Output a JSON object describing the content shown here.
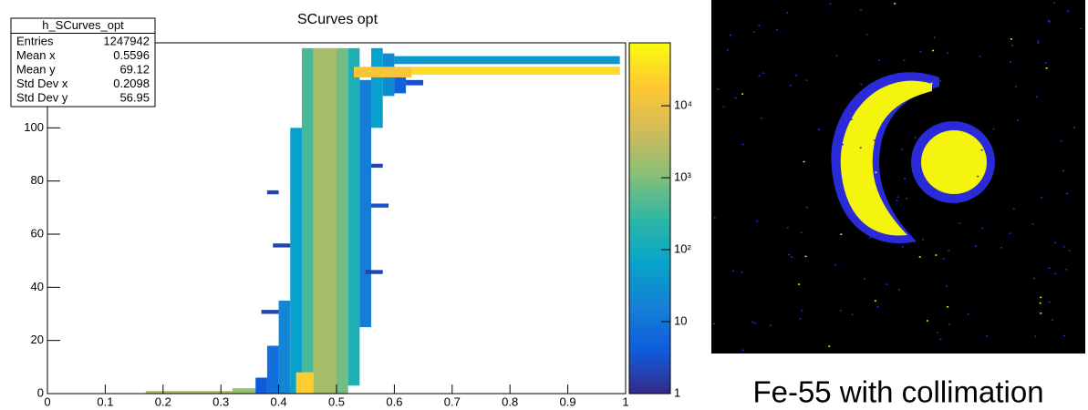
{
  "chart_data": {
    "type": "heatmap2d",
    "title": "SCurves opt",
    "xlim": [
      0,
      1
    ],
    "xticks": [
      0,
      0.1,
      0.2,
      0.3,
      0.4,
      0.5,
      0.6,
      0.7,
      0.8,
      0.9,
      1
    ],
    "ylim": [
      0,
      132
    ],
    "yticks": [
      0,
      20,
      40,
      60,
      80,
      100
    ],
    "zlim": [
      1,
      75000
    ],
    "zlog": true,
    "zticks": [
      1,
      10,
      {
        "value": 100,
        "label": "10²"
      },
      {
        "value": 1000,
        "label": "10³"
      },
      {
        "value": 10000,
        "label": "10⁴"
      }
    ],
    "palette": [
      "#352a87",
      "#0f5cdd",
      "#1481d6",
      "#06a4ca",
      "#2eb7a4",
      "#87bf77",
      "#d1bb59",
      "#fec832",
      "#f9fb0e"
    ],
    "cells": [
      {
        "x": [
          0.17,
          0.32
        ],
        "y": [
          0,
          1
        ],
        "count": 3000
      },
      {
        "x": [
          0.32,
          0.42
        ],
        "y": [
          0,
          2
        ],
        "count": 1500
      },
      {
        "x": [
          0.42,
          0.44
        ],
        "y": [
          0,
          100
        ],
        "count": 60
      },
      {
        "x": [
          0.4,
          0.42
        ],
        "y": [
          0,
          35
        ],
        "count": 20
      },
      {
        "x": [
          0.38,
          0.4
        ],
        "y": [
          0,
          18
        ],
        "count": 8
      },
      {
        "x": [
          0.36,
          0.38
        ],
        "y": [
          0,
          6
        ],
        "count": 4
      },
      {
        "x": [
          0.43,
          0.46
        ],
        "y": [
          0,
          8
        ],
        "count": 20000
      },
      {
        "x": [
          0.44,
          0.46
        ],
        "y": [
          8,
          130
        ],
        "count": 400
      },
      {
        "x": [
          0.46,
          0.5
        ],
        "y": [
          0,
          130
        ],
        "count": 2000
      },
      {
        "x": [
          0.5,
          0.52
        ],
        "y": [
          0,
          130
        ],
        "count": 800
      },
      {
        "x": [
          0.52,
          0.54
        ],
        "y": [
          3,
          130
        ],
        "count": 150
      },
      {
        "x": [
          0.54,
          0.56
        ],
        "y": [
          25,
          118
        ],
        "count": 15
      },
      {
        "x": [
          0.56,
          0.58
        ],
        "y": [
          100,
          130
        ],
        "count": 60
      },
      {
        "x": [
          0.58,
          0.6
        ],
        "y": [
          112,
          128
        ],
        "count": 25
      },
      {
        "x": [
          0.6,
          0.62
        ],
        "y": [
          113,
          119
        ],
        "count": 5
      },
      {
        "x": [
          0.62,
          0.65
        ],
        "y": [
          116,
          118
        ],
        "count": 3
      },
      {
        "x": [
          0.53,
          0.63
        ],
        "y": [
          119,
          123
        ],
        "count": 15000
      },
      {
        "x": [
          0.63,
          0.99
        ],
        "y": [
          120,
          123
        ],
        "count": 30000
      },
      {
        "x": [
          0.6,
          0.99
        ],
        "y": [
          124,
          127
        ],
        "count": 40
      },
      {
        "x": [
          0.38,
          0.4
        ],
        "y": [
          75,
          76.5
        ],
        "count": 2
      },
      {
        "x": [
          0.37,
          0.4
        ],
        "y": [
          30,
          31.5
        ],
        "count": 2
      },
      {
        "x": [
          0.39,
          0.42
        ],
        "y": [
          55,
          56.5
        ],
        "count": 2
      },
      {
        "x": [
          0.56,
          0.59
        ],
        "y": [
          70,
          71.5
        ],
        "count": 3
      },
      {
        "x": [
          0.56,
          0.58
        ],
        "y": [
          85,
          86.5
        ],
        "count": 2
      },
      {
        "x": [
          0.55,
          0.58
        ],
        "y": [
          45,
          46.5
        ],
        "count": 2
      }
    ],
    "stats": {
      "name": "h_SCurves_opt",
      "rows": [
        [
          "Entries",
          "1247942"
        ],
        [
          "Mean x",
          "0.5596"
        ],
        [
          "Mean y",
          "69.12"
        ],
        [
          "Std Dev x",
          "0.2098"
        ],
        [
          "Std Dev y",
          "56.95"
        ]
      ]
    }
  },
  "image": {
    "caption": "Fe-55 with collimation"
  }
}
